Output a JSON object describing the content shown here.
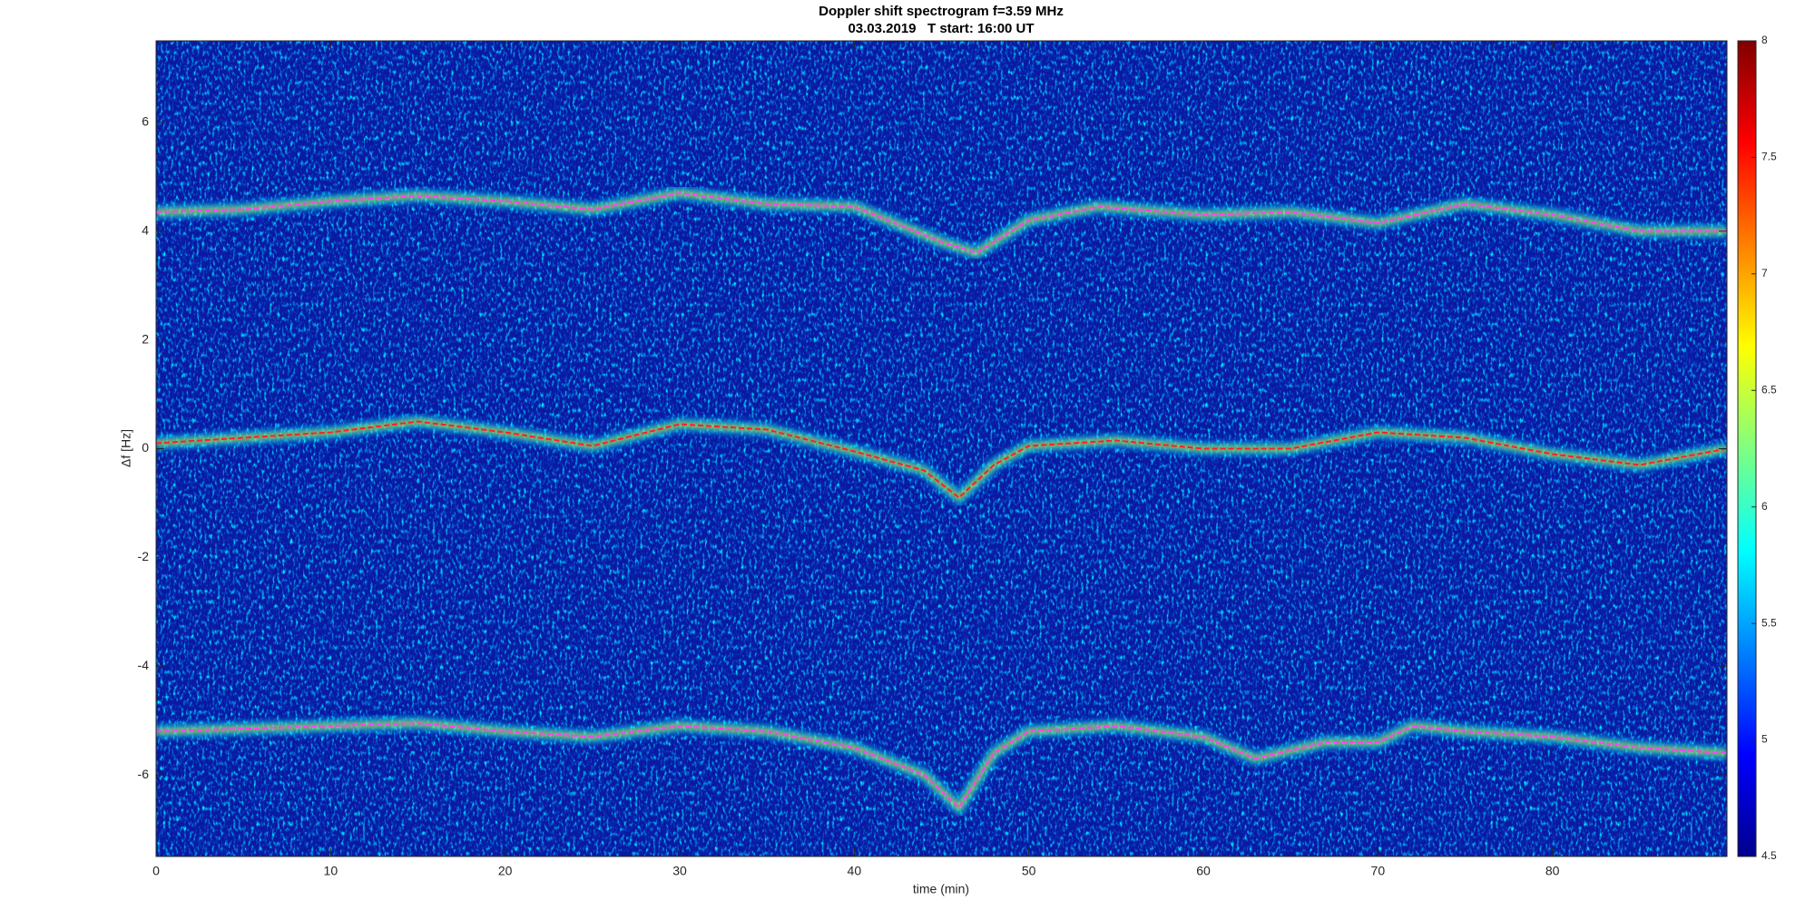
{
  "chart_data": {
    "type": "spectrogram",
    "title": "Doppler shift spectrogram f=3.59 MHz",
    "subtitle": "03.03.2019   T start: 16:00 UT",
    "x_label": "time (min)",
    "y_label": "Δf [Hz]",
    "xlim": [
      0,
      90
    ],
    "xticks": [
      0,
      10,
      20,
      30,
      40,
      50,
      60,
      70,
      80
    ],
    "ylim": [
      -7.5,
      7.5
    ],
    "yticks": [
      -6,
      -4,
      -2,
      0,
      2,
      4,
      6
    ],
    "clim": [
      4.5,
      8
    ],
    "cticks": [
      4.5,
      5,
      5.5,
      6,
      6.5,
      7,
      7.5,
      8
    ],
    "series": [
      {
        "color": "#ff40ff",
        "x": [
          0,
          5,
          10,
          15,
          20,
          25,
          30,
          35,
          40,
          45,
          47,
          50,
          54,
          60,
          65,
          70,
          75,
          80,
          85,
          90
        ],
        "values": [
          4.35,
          4.4,
          4.55,
          4.65,
          4.55,
          4.4,
          4.7,
          4.5,
          4.45,
          3.8,
          3.6,
          4.2,
          4.45,
          4.3,
          4.35,
          4.15,
          4.5,
          4.3,
          4.0,
          4.0
        ]
      },
      {
        "color": "#ff2020",
        "x": [
          0,
          5,
          10,
          15,
          20,
          25,
          30,
          35,
          40,
          44,
          46,
          48,
          50,
          55,
          60,
          65,
          70,
          75,
          80,
          85,
          90
        ],
        "values": [
          0.1,
          0.2,
          0.3,
          0.5,
          0.3,
          0.05,
          0.45,
          0.35,
          -0.05,
          -0.4,
          -0.9,
          -0.3,
          0.05,
          0.15,
          0.0,
          0.0,
          0.3,
          0.2,
          -0.1,
          -0.3,
          0.0
        ]
      },
      {
        "color": "#ff40ff",
        "x": [
          0,
          5,
          10,
          15,
          20,
          25,
          30,
          35,
          40,
          44,
          46,
          48,
          50,
          55,
          60,
          63,
          67,
          70,
          72,
          75,
          80,
          85,
          90
        ],
        "values": [
          -5.2,
          -5.15,
          -5.1,
          -5.05,
          -5.2,
          -5.3,
          -5.1,
          -5.2,
          -5.5,
          -6.0,
          -6.6,
          -5.6,
          -5.2,
          -5.1,
          -5.3,
          -5.7,
          -5.4,
          -5.4,
          -5.1,
          -5.2,
          -5.3,
          -5.5,
          -5.6
        ]
      }
    ]
  }
}
